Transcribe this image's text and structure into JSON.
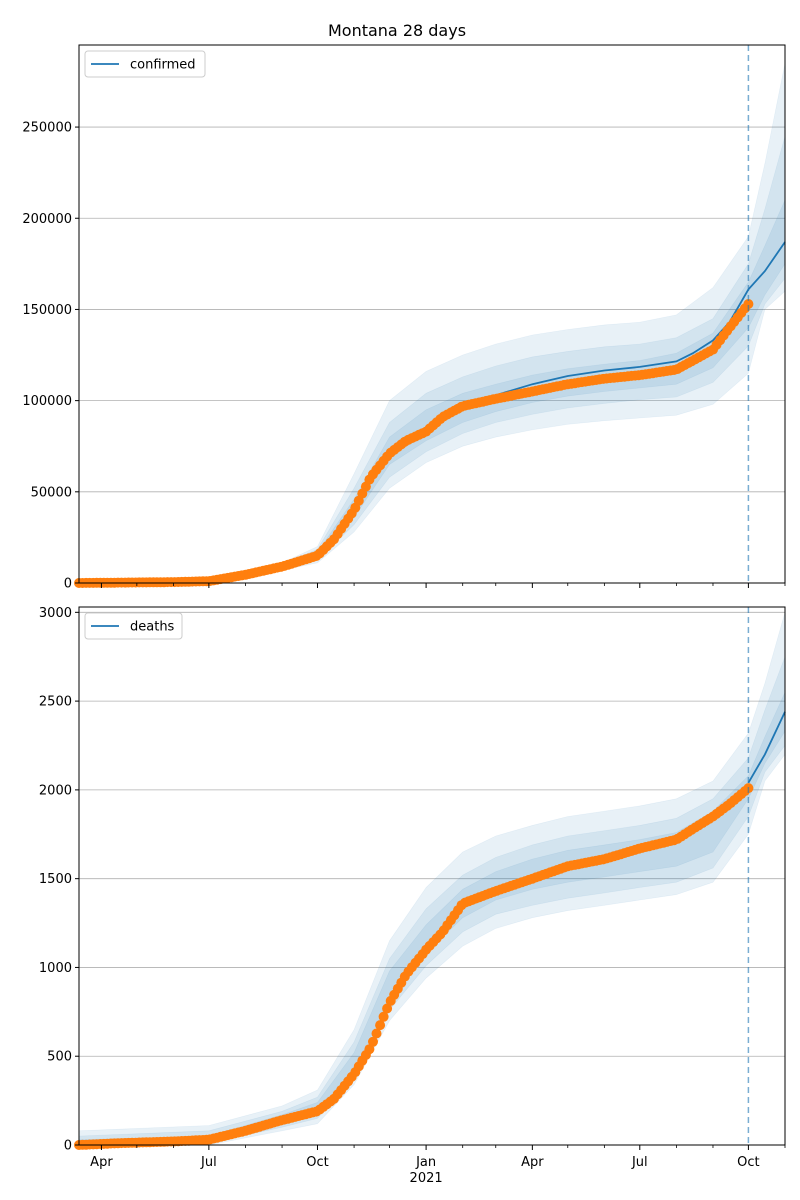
{
  "figure_title": "Montana 28 days",
  "chart_data": [
    {
      "type": "line",
      "series_name": "confirmed",
      "x_tick_labels": [
        "Apr",
        "Jul",
        "Oct",
        "Jan",
        "Apr",
        "Jul",
        "Oct"
      ],
      "x_year_label": "2021",
      "ylim": [
        0,
        295000
      ],
      "y_ticks": [
        0,
        50000,
        100000,
        150000,
        200000,
        250000
      ],
      "y_tick_labels": [
        "0",
        "50000",
        "100000",
        "150000",
        "200000",
        "250000"
      ],
      "grid": "horizontal",
      "legend_position": "top-left",
      "forecast_start": "2021-10-01",
      "fit_line": {
        "x": [
          "2020-03-13",
          "2020-04-15",
          "2020-06-01",
          "2020-07-01",
          "2020-08-01",
          "2020-09-01",
          "2020-10-01",
          "2020-10-15",
          "2020-11-01",
          "2020-11-15",
          "2020-12-01",
          "2020-12-15",
          "2021-01-01",
          "2021-01-15",
          "2021-02-01",
          "2021-03-01",
          "2021-04-01",
          "2021-05-01",
          "2021-06-01",
          "2021-07-01",
          "2021-08-01",
          "2021-08-15",
          "2021-09-01",
          "2021-09-15",
          "2021-10-01",
          "2021-10-15",
          "2021-11-01"
        ],
        "y": [
          0,
          100,
          300,
          1000,
          5000,
          9500,
          15500,
          25000,
          40000,
          58000,
          72000,
          78000,
          84000,
          92000,
          98000,
          103000,
          109000,
          113500,
          116500,
          118500,
          121500,
          126000,
          133000,
          143000,
          161000,
          171000,
          187000
        ]
      },
      "observed": {
        "x": [
          "2020-03-13",
          "2020-04-15",
          "2020-06-01",
          "2020-07-01",
          "2020-08-01",
          "2020-09-01",
          "2020-10-01",
          "2020-10-15",
          "2020-11-01",
          "2020-11-15",
          "2020-12-01",
          "2020-12-15",
          "2021-01-01",
          "2021-01-15",
          "2021-02-01",
          "2021-03-01",
          "2021-04-01",
          "2021-05-01",
          "2021-06-01",
          "2021-07-01",
          "2021-08-01",
          "2021-08-15",
          "2021-09-01",
          "2021-09-15",
          "2021-10-01"
        ],
        "y": [
          0,
          200,
          500,
          1000,
          4500,
          9000,
          15000,
          24000,
          40000,
          58000,
          71000,
          78000,
          83000,
          91000,
          97000,
          101000,
          105000,
          109000,
          112000,
          114000,
          117000,
          122000,
          128000,
          140000,
          153000
        ]
      },
      "bands": {
        "x": [
          "2020-03-13",
          "2020-07-01",
          "2020-09-01",
          "2020-10-01",
          "2020-11-01",
          "2020-12-01",
          "2021-01-01",
          "2021-02-01",
          "2021-03-01",
          "2021-04-01",
          "2021-05-01",
          "2021-06-01",
          "2021-07-01",
          "2021-08-01",
          "2021-09-01",
          "2021-10-01",
          "2021-10-15",
          "2021-11-01"
        ],
        "outer_upper": [
          2000,
          3000,
          11000,
          20000,
          60000,
          100000,
          116000,
          125000,
          131000,
          136000,
          139000,
          141500,
          143000,
          147000,
          162000,
          190000,
          230000,
          285000
        ],
        "middle_upper": [
          1000,
          2000,
          10500,
          18500,
          52000,
          88000,
          104000,
          113000,
          119000,
          124000,
          127000,
          129500,
          131000,
          134500,
          145000,
          175000,
          205000,
          245000
        ],
        "inner_upper": [
          500,
          1500,
          10000,
          17000,
          46000,
          80000,
          95000,
          104000,
          109000,
          114000,
          117500,
          120000,
          122000,
          126000,
          137000,
          165000,
          185000,
          210000
        ],
        "inner_lower": [
          0,
          500,
          9000,
          14000,
          36000,
          65000,
          78000,
          88000,
          94000,
          99000,
          102500,
          105000,
          107000,
          109000,
          118000,
          140000,
          158000,
          175000
        ],
        "middle_lower": [
          0,
          300,
          8000,
          12500,
          32000,
          58000,
          72000,
          82000,
          88000,
          92500,
          96000,
          98500,
          100500,
          102000,
          110000,
          130000,
          153000,
          167000
        ],
        "outer_lower": [
          0,
          100,
          7000,
          11000,
          28000,
          52000,
          66000,
          75000,
          80000,
          84000,
          87000,
          89000,
          90500,
          92000,
          98000,
          115000,
          150000,
          160000
        ]
      }
    },
    {
      "type": "line",
      "series_name": "deaths",
      "x_tick_labels": [
        "Apr",
        "Jul",
        "Oct",
        "Jan",
        "Apr",
        "Jul",
        "Oct"
      ],
      "x_year_label": "2021",
      "ylim": [
        0,
        3030
      ],
      "y_ticks": [
        0,
        500,
        1000,
        1500,
        2000,
        2500,
        3000
      ],
      "y_tick_labels": [
        "0",
        "500",
        "1000",
        "1500",
        "2000",
        "2500",
        "3000"
      ],
      "grid": "horizontal",
      "legend_position": "top-left",
      "forecast_start": "2021-10-01",
      "fit_line": {
        "x": [
          "2021-10-01",
          "2021-10-15",
          "2021-11-01"
        ],
        "y": [
          2040,
          2200,
          2440
        ]
      },
      "observed": {
        "x": [
          "2020-03-13",
          "2020-04-15",
          "2020-06-01",
          "2020-07-01",
          "2020-08-01",
          "2020-09-01",
          "2020-10-01",
          "2020-10-15",
          "2020-11-01",
          "2020-11-15",
          "2020-12-01",
          "2020-12-15",
          "2021-01-01",
          "2021-01-15",
          "2021-02-01",
          "2021-03-01",
          "2021-04-01",
          "2021-05-01",
          "2021-06-01",
          "2021-07-01",
          "2021-08-01",
          "2021-08-15",
          "2021-09-01",
          "2021-09-15",
          "2021-10-01"
        ],
        "y": [
          0,
          10,
          20,
          30,
          80,
          140,
          190,
          260,
          400,
          550,
          800,
          960,
          1100,
          1200,
          1360,
          1430,
          1500,
          1570,
          1610,
          1670,
          1720,
          1780,
          1850,
          1920,
          2010
        ]
      },
      "bands": {
        "x": [
          "2020-03-13",
          "2020-07-01",
          "2020-09-01",
          "2020-10-01",
          "2020-11-01",
          "2020-12-01",
          "2021-01-01",
          "2021-02-01",
          "2021-03-01",
          "2021-04-01",
          "2021-05-01",
          "2021-06-01",
          "2021-07-01",
          "2021-08-01",
          "2021-09-01",
          "2021-10-01",
          "2021-10-15",
          "2021-11-01"
        ],
        "outer_upper": [
          80,
          110,
          220,
          310,
          650,
          1150,
          1450,
          1650,
          1740,
          1800,
          1850,
          1880,
          1910,
          1950,
          2050,
          2320,
          2600,
          3000
        ],
        "middle_upper": [
          50,
          80,
          190,
          270,
          580,
          1050,
          1330,
          1520,
          1620,
          1690,
          1740,
          1770,
          1800,
          1840,
          1950,
          2180,
          2450,
          2750
        ],
        "inner_upper": [
          30,
          50,
          170,
          240,
          520,
          980,
          1240,
          1440,
          1540,
          1610,
          1660,
          1690,
          1720,
          1760,
          1880,
          2080,
          2300,
          2550
        ],
        "inner_lower": [
          0,
          20,
          120,
          180,
          420,
          820,
          1080,
          1280,
          1380,
          1440,
          1480,
          1510,
          1540,
          1570,
          1650,
          1950,
          2150,
          2330
        ],
        "middle_lower": [
          0,
          10,
          100,
          150,
          380,
          760,
          1010,
          1200,
          1300,
          1350,
          1390,
          1420,
          1450,
          1480,
          1560,
          1850,
          2100,
          2250
        ],
        "outer_lower": [
          0,
          0,
          80,
          120,
          340,
          700,
          940,
          1120,
          1220,
          1280,
          1320,
          1350,
          1380,
          1410,
          1480,
          1750,
          2050,
          2200
        ]
      }
    }
  ]
}
